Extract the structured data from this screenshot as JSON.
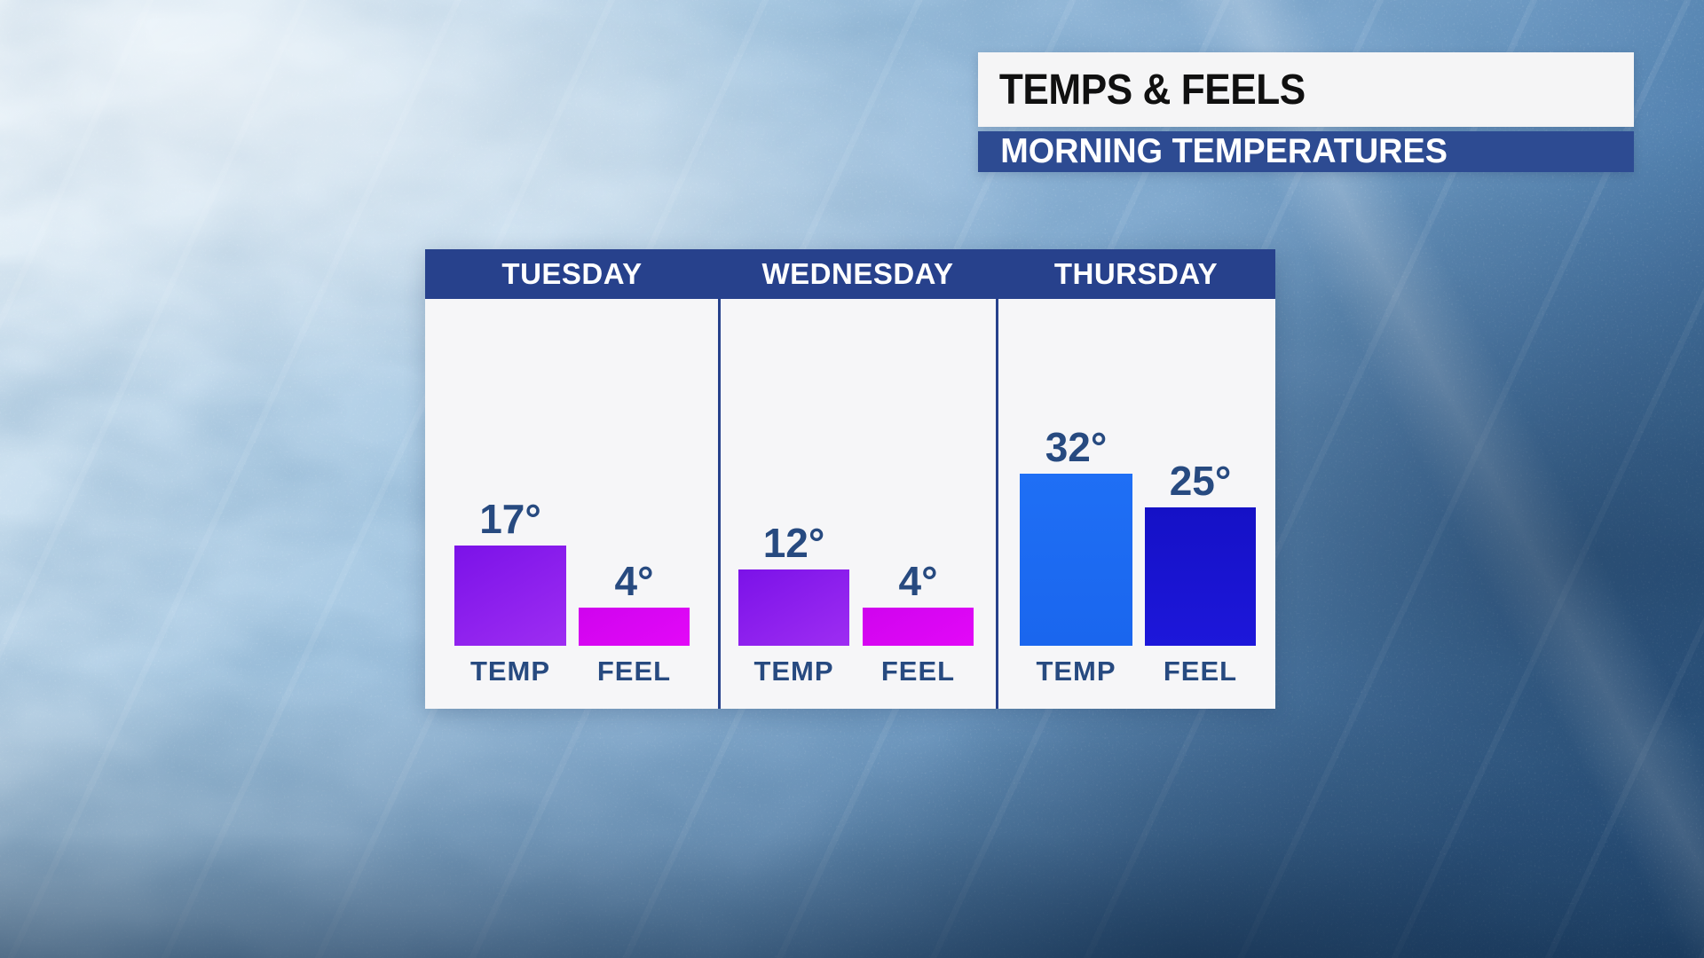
{
  "header": {
    "title": "TEMPS & FEELS",
    "subtitle": "MORNING TEMPERATURES"
  },
  "colors": {
    "title_plate_bg": "#f5f5f6",
    "title_text": "#101010",
    "subtitle_bar_bg": "#2d4b92",
    "subtitle_text": "#ffffff",
    "panel_bg": "#f6f6f8",
    "day_header_bg": "#27418c",
    "divider": "#27418c",
    "value_text": "#274a80",
    "temp_purple_gradient": [
      "#7b12e8",
      "#9e2df2"
    ],
    "feel_magenta_gradient": [
      "#cf04ee",
      "#e308f8"
    ],
    "temp_blue": "#1c6af2",
    "feel_dark_blue": "#1813cf"
  },
  "chart_data": {
    "type": "bar",
    "title": "TEMPS & FEELS",
    "subtitle": "MORNING TEMPERATURES",
    "categories": [
      "TUESDAY",
      "WEDNESDAY",
      "THURSDAY"
    ],
    "series": [
      {
        "name": "TEMP",
        "values": [
          17,
          12,
          32
        ]
      },
      {
        "name": "FEEL",
        "values": [
          4,
          4,
          25
        ]
      }
    ],
    "unit": "°F",
    "legend_position": "below-bars",
    "grid": false,
    "value_labels_shown": true
  },
  "days": [
    {
      "label": "TUESDAY",
      "temp_display": "17°",
      "feel_display": "4°",
      "temp_label": "TEMP",
      "feel_label": "FEEL"
    },
    {
      "label": "WEDNESDAY",
      "temp_display": "12°",
      "feel_display": "4°",
      "temp_label": "TEMP",
      "feel_label": "FEEL"
    },
    {
      "label": "THURSDAY",
      "temp_display": "32°",
      "feel_display": "25°",
      "temp_label": "TEMP",
      "feel_label": "FEEL"
    }
  ]
}
